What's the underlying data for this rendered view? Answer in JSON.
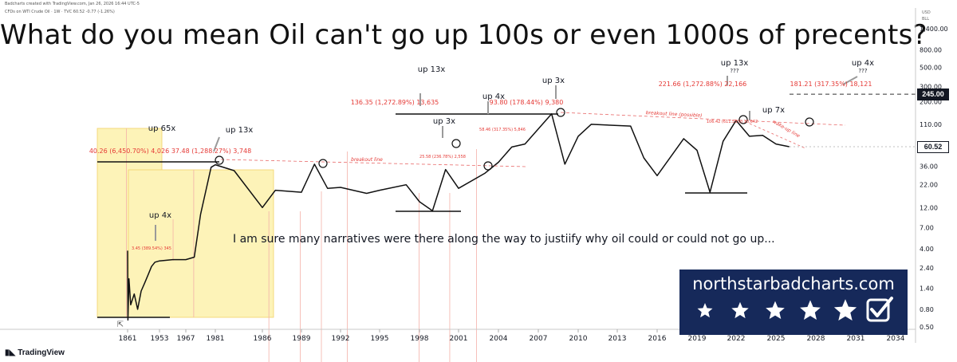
{
  "header": {
    "line1": "Badcharts created with TradingView.com, Jan 26, 2026 16:44 UTC-5",
    "line2": "CFDs on WTI Crude Oil · 1W · TVC  60.52  -0.77 (-1.26%)"
  },
  "footer": {
    "brand": "TradingView"
  },
  "banner": {
    "title": "northstarbadcharts.com",
    "star_count": 5,
    "icon": "checkbox-check-icon"
  },
  "colors": {
    "price_line": "#111111",
    "zone_fill": "#fdf3b8",
    "zone_border": "#f2d26a",
    "annotation_red": "#e53935",
    "breakout_dash": "#e86a6a",
    "banner_bg": "#16295a"
  },
  "price_labels": {
    "current": "60.52",
    "target": "245.00"
  },
  "chart_data": {
    "type": "line",
    "title": "What do you mean Oil can't go up 100s or even 1000s of precents?",
    "xlabel": "",
    "ylabel": "",
    "y_scale": "log",
    "ylim": [
      0.5,
      1400
    ],
    "y_ticks": [
      "1,400.00",
      "800.00",
      "500.00",
      "300.00",
      "200.00",
      "110.00",
      "60.00",
      "36.00",
      "22.00",
      "12.00",
      "7.00",
      "4.00",
      "2.40",
      "1.40",
      "0.80",
      "0.50"
    ],
    "axis_units": [
      "USD",
      "BLL"
    ],
    "x_ticks": [
      "1861",
      "1953",
      "1967",
      "1981",
      "1986",
      "1989",
      "1992",
      "1995",
      "1998",
      "2001",
      "2004",
      "2007",
      "2010",
      "2013",
      "2016",
      "2019",
      "2022",
      "2025",
      "2028",
      "2031",
      "2034"
    ],
    "series": [
      {
        "x": [
          "1861",
          "1862",
          "1865",
          "1870",
          "1880",
          "1890",
          "1900",
          "1910",
          "1920",
          "1930",
          "1940",
          "1953",
          "1960",
          "1967",
          "1971",
          "1974",
          "1979",
          "1981",
          "1983",
          "1986",
          "1987",
          "1989",
          "1990",
          "1991",
          "1992",
          "1994",
          "1995",
          "1997",
          "1998",
          "1999",
          "2000",
          "2001",
          "2003",
          "2004",
          "2005",
          "2006",
          "2008",
          "2009",
          "2010",
          "2011",
          "2014",
          "2015",
          "2016",
          "2018",
          "2019",
          "2020",
          "2021",
          "2022",
          "2023",
          "2024",
          "2025",
          "2026"
        ],
        "values": [
          3.8,
          0.6,
          1.8,
          0.9,
          1.2,
          0.8,
          1.3,
          1.6,
          2.0,
          2.5,
          2.8,
          2.9,
          3.0,
          3.0,
          3.2,
          10.0,
          35.0,
          37.5,
          32.0,
          12.0,
          19.0,
          18.0,
          38.0,
          20.0,
          20.5,
          17.5,
          19.0,
          22.0,
          14.0,
          11.0,
          33.0,
          20.0,
          30.0,
          40.0,
          60.0,
          65.0,
          145.0,
          38.0,
          80.0,
          110.0,
          105.0,
          45.0,
          28.0,
          75.0,
          55.0,
          18.0,
          70.0,
          122.0,
          80.0,
          82.0,
          65.0,
          60.52
        ]
      }
    ],
    "levels": {
      "current": 60.52,
      "target": 245.0
    },
    "annotations": [
      "up 65x",
      "40.26 (6,450.70%) 4,026",
      "up 13x",
      "37.48 (1,288.27%) 3,748",
      "up 4x",
      "3.45 (389.54%) 345",
      "breakout line",
      "up 13x",
      "136.35 (1,272.89%) 13,635",
      "up 3x",
      "25.58 (236.78%) 2,558",
      "up 4x",
      "58.46 (317.35%) 5,846",
      "up 3x",
      "93.80 (178.44%) 9,380",
      "up 13x",
      "???",
      "221.66 (1,272.88%) 22,166",
      "breakout line (possible)",
      "up 7x",
      "106.42 (611.53%) 10,642",
      "wake-up line",
      "up 4x",
      "???",
      "181.21 (317.35%) 18,121"
    ],
    "note": "I am sure many narratives were there along the way to justiify why oil could or could not go up..."
  }
}
